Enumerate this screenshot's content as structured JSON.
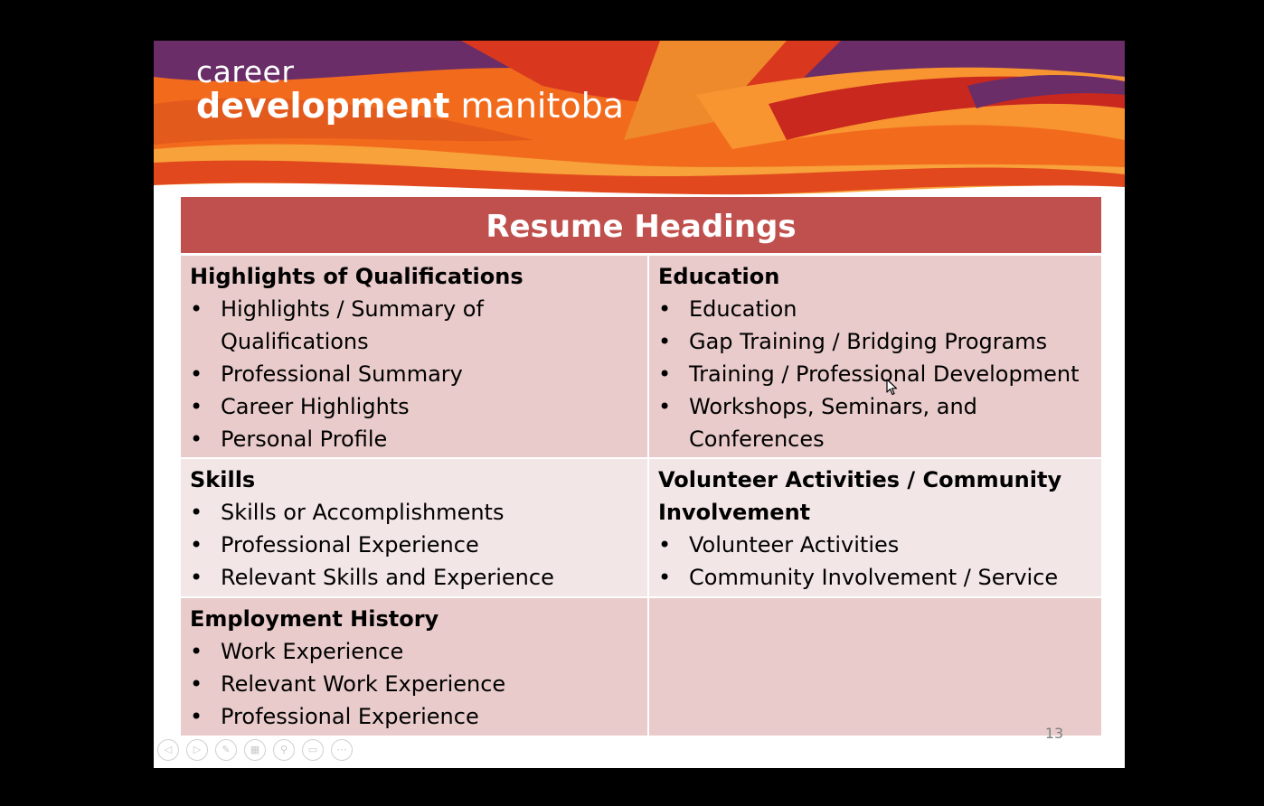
{
  "logo": {
    "line1": "career",
    "line2_bold": "development",
    "line2_regular": "manitoba"
  },
  "table": {
    "title": "Resume Headings",
    "cells": [
      {
        "heading": "Highlights of Qualifications",
        "items": [
          "Highlights / Summary of Qualifications",
          "Professional Summary",
          "Career Highlights",
          "Personal Profile"
        ]
      },
      {
        "heading": "Education",
        "items": [
          "Education",
          "Gap Training / Bridging Programs",
          "Training / Professional Development",
          "Workshops, Seminars, and Conferences"
        ]
      },
      {
        "heading": "Skills",
        "items": [
          "Skills or Accomplishments",
          "Professional Experience",
          "Relevant Skills and Experience"
        ]
      },
      {
        "heading": "Volunteer Activities / Community Involvement",
        "items": [
          "Volunteer Activities",
          "Community Involvement / Service"
        ]
      },
      {
        "heading": "Employment History",
        "items": [
          "Work Experience",
          "Relevant Work Experience",
          "Professional Experience"
        ]
      }
    ]
  },
  "page_number": "13",
  "bullet": "•",
  "controls": [
    {
      "name": "previous-slide-button",
      "icon": "arrow-left-icon",
      "glyph": "◁"
    },
    {
      "name": "next-slide-button",
      "icon": "arrow-right-icon",
      "glyph": "▷"
    },
    {
      "name": "pen-tool-button",
      "icon": "pen-icon",
      "glyph": "✎"
    },
    {
      "name": "see-all-slides-button",
      "icon": "grid-icon",
      "glyph": "▦"
    },
    {
      "name": "zoom-button",
      "icon": "magnifier-icon",
      "glyph": "⚲"
    },
    {
      "name": "subtitles-button",
      "icon": "subtitles-icon",
      "glyph": "▭"
    },
    {
      "name": "more-options-button",
      "icon": "ellipsis-icon",
      "glyph": "⋯"
    }
  ],
  "colors": {
    "header_fill": "#c0504d",
    "cell_dark": "#e8cbca",
    "cell_light": "#f3e6e6",
    "banner_purple": "#6a2d68",
    "banner_orange": "#f26b1d",
    "banner_red": "#c9281e"
  }
}
